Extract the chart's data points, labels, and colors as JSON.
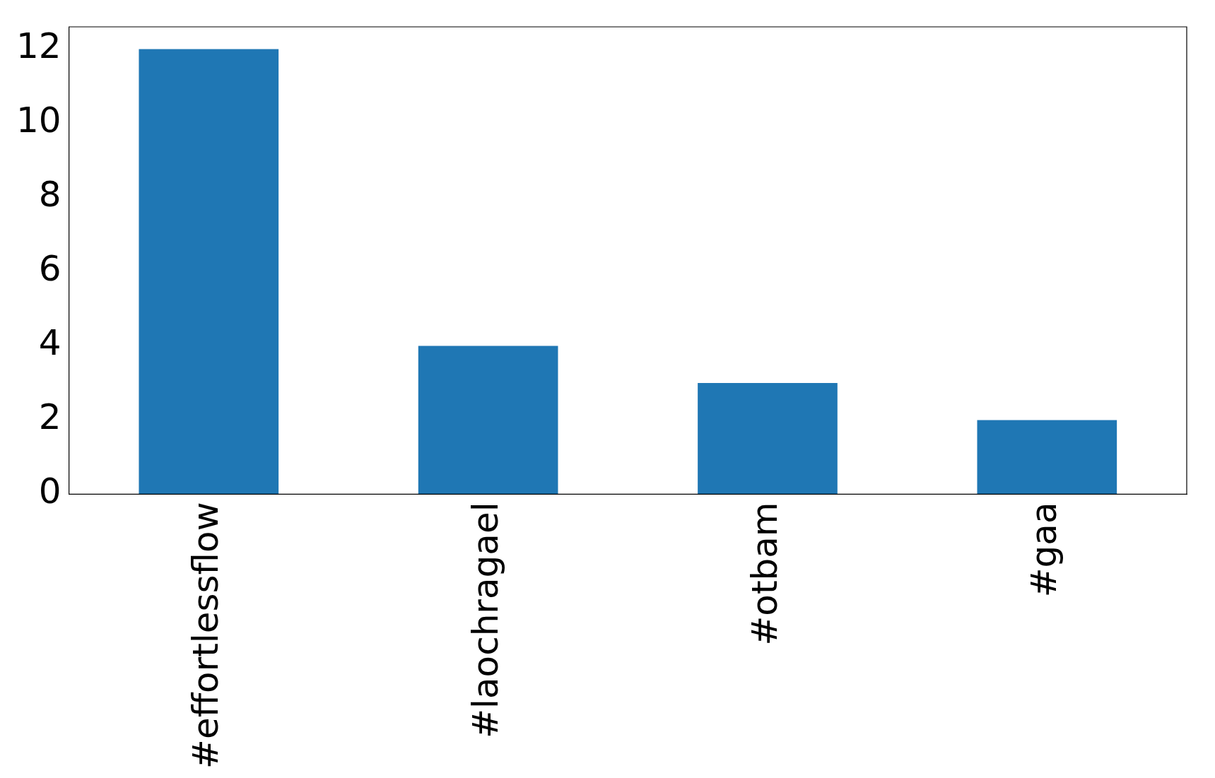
{
  "chart_data": {
    "type": "bar",
    "categories": [
      "#effortlessflow",
      "#laochragael",
      "#otbam",
      "#gaa"
    ],
    "values": [
      12,
      4,
      3,
      2
    ],
    "color": "#1f77b4",
    "ylim": [
      0,
      12.6
    ],
    "yticks": [
      0,
      2,
      4,
      6,
      8,
      10,
      12
    ],
    "grid": false,
    "legend": false
  }
}
